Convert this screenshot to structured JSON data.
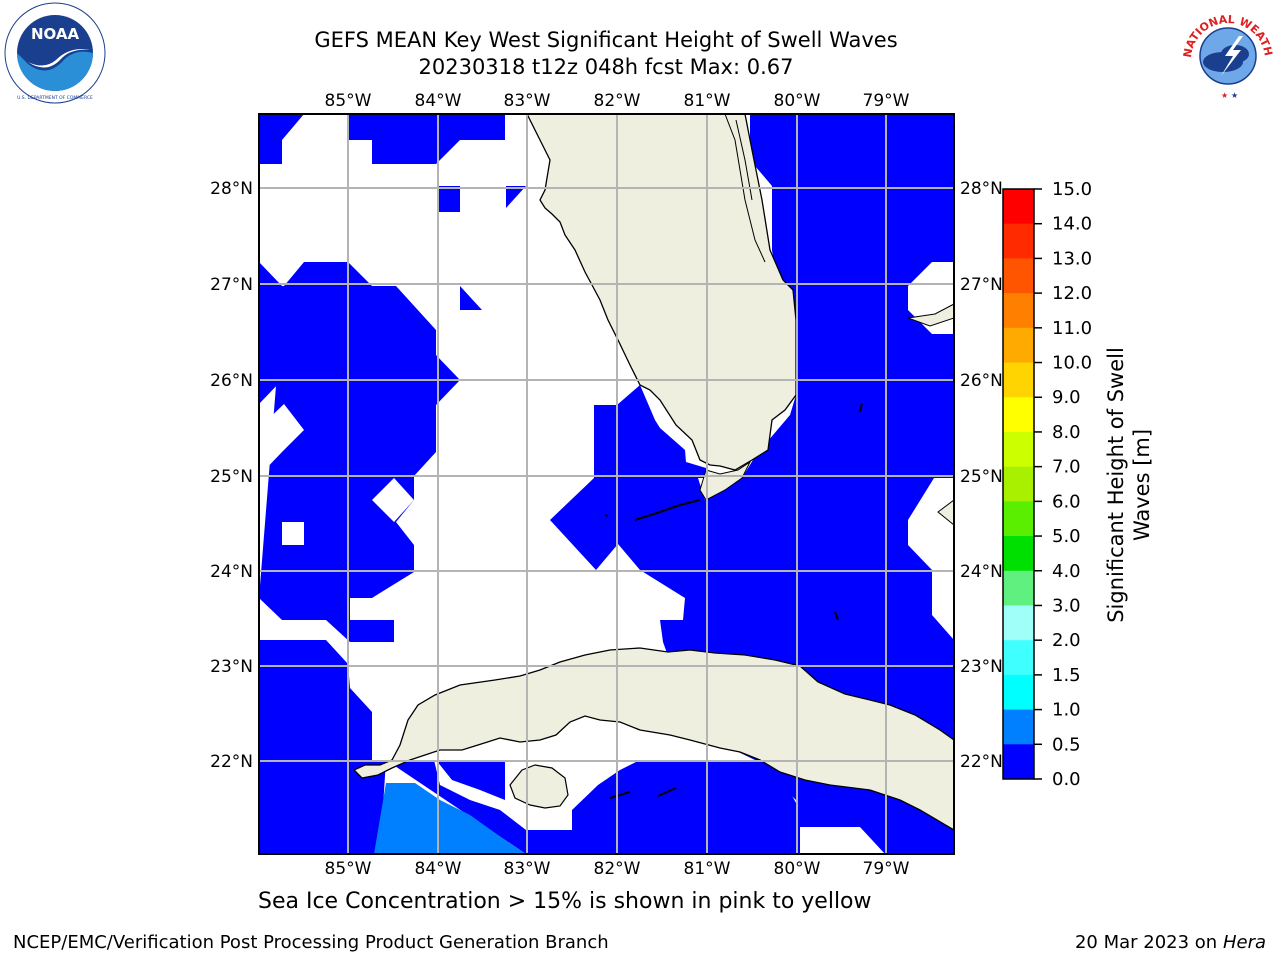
{
  "header": {
    "title_line1": "GEFS MEAN Key West Significant Height of Swell Waves",
    "title_line2": "20230318 t12z 048h fcst   Max: 0.67"
  },
  "logos": {
    "left": {
      "name": "noaa-logo",
      "text": "NOAA",
      "ring_text": "NATIONAL OCEANIC AND ATMOSPHERIC ADMINISTRATION · U.S. DEPARTMENT OF COMMERCE"
    },
    "right": {
      "name": "nws-logo",
      "ring_text": "NATIONAL WEATHER SERVICE"
    }
  },
  "map": {
    "lon_labels": [
      "85°W",
      "84°W",
      "83°W",
      "82°W",
      "81°W",
      "80°W",
      "79°W"
    ],
    "lat_labels": [
      "28°N",
      "27°N",
      "26°N",
      "25°N",
      "24°N",
      "23°N",
      "22°N"
    ],
    "colors": {
      "land": "#efefdf",
      "swell_0_0_5": "#0000ff",
      "swell_0_5_1_0": "#0080ff",
      "grid": "#b4b4b4"
    }
  },
  "colorbar": {
    "title_line1": "Significant Height of Swell",
    "title_line2": "Waves [m]",
    "labels": [
      "15.0",
      "14.0",
      "13.0",
      "12.0",
      "11.0",
      "10.0",
      "9.0",
      "8.0",
      "7.0",
      "6.0",
      "5.0",
      "4.0",
      "3.0",
      "2.0",
      "1.5",
      "1.0",
      "0.5",
      "0.0"
    ],
    "colors": [
      "#ff0000",
      "#ff2a00",
      "#ff5500",
      "#ff8000",
      "#ffaa00",
      "#ffd400",
      "#ffff00",
      "#ccff00",
      "#a8f000",
      "#5aee00",
      "#00e000",
      "#60f080",
      "#a0fff8",
      "#40ffff",
      "#00ffff",
      "#0080ff",
      "#0000ff"
    ]
  },
  "footer": {
    "note": "Sea Ice Concentration > 15% is shown in pink to yellow",
    "credit": "NCEP/EMC/Verification Post Processing Product Generation Branch",
    "date": "20 Mar 2023 on",
    "machine": "Hera"
  }
}
